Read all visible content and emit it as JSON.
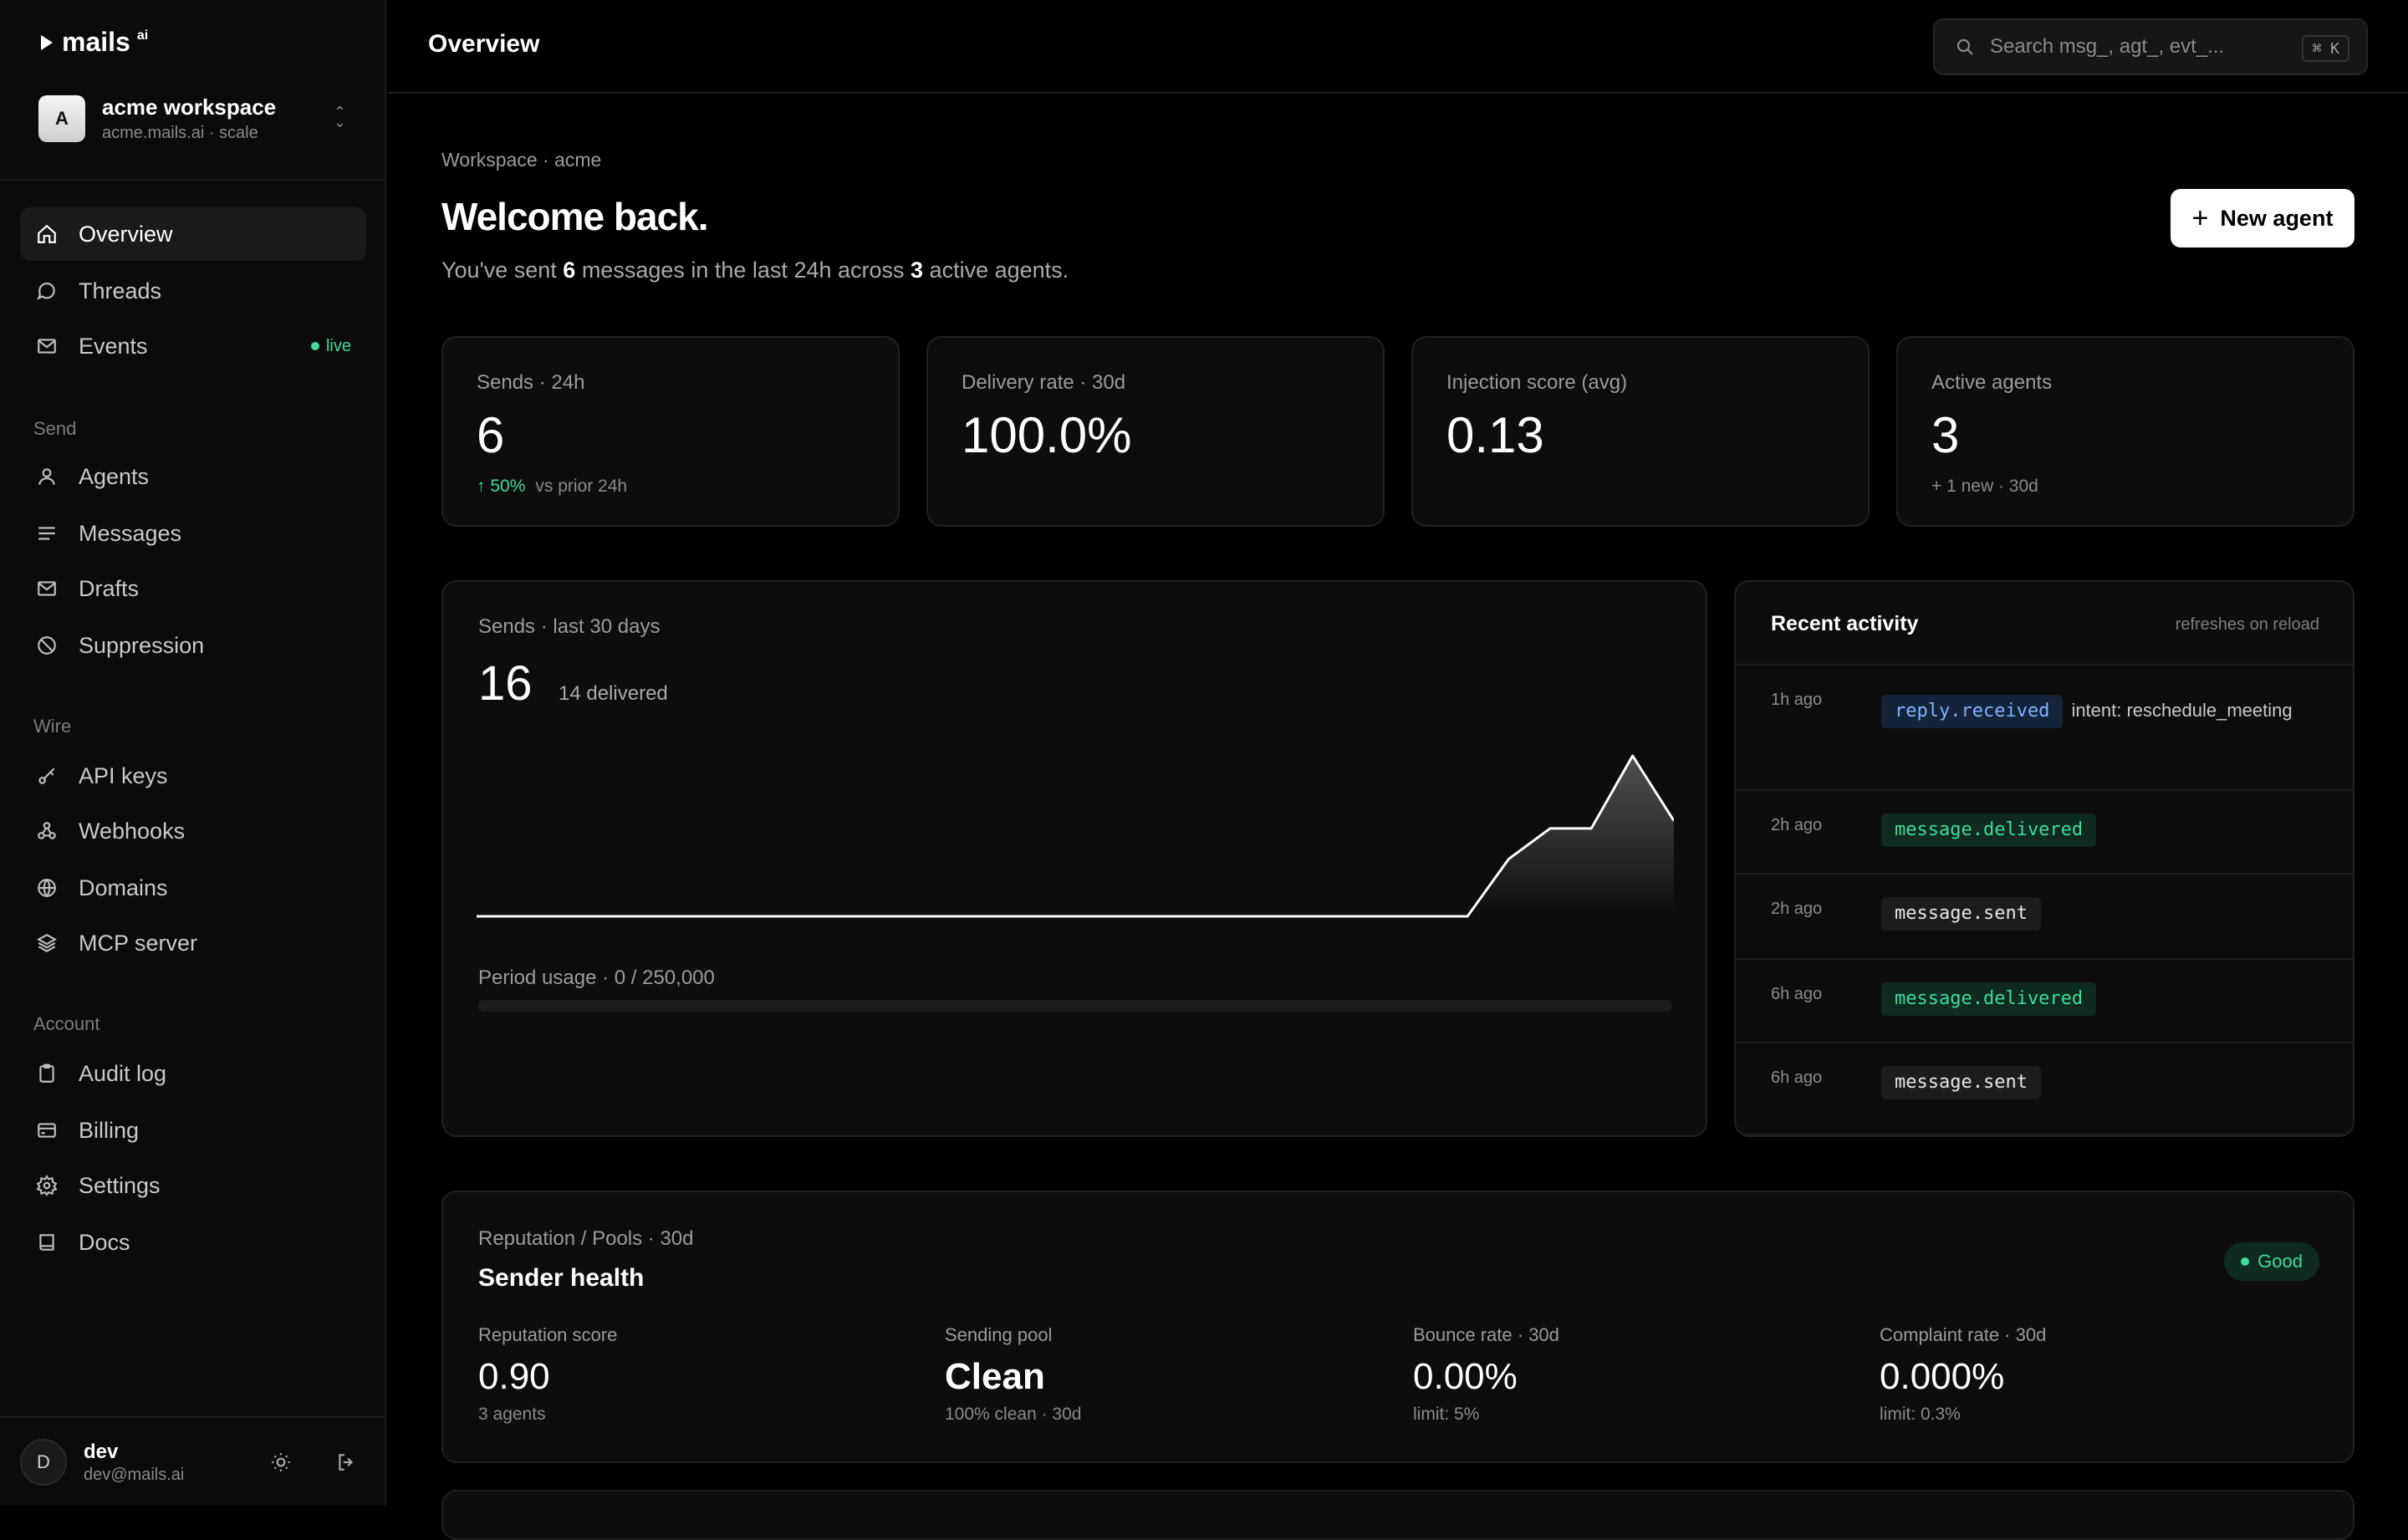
{
  "brand": {
    "logo_text": "mails",
    "logo_sup": "ai"
  },
  "workspace": {
    "avatar_letter": "A",
    "name": "acme workspace",
    "sub": "acme.mails.ai · scale"
  },
  "nav": {
    "overview": "Overview",
    "threads": "Threads",
    "events": "Events",
    "events_badge": "live",
    "section_send": "Send",
    "agents": "Agents",
    "messages": "Messages",
    "drafts": "Drafts",
    "suppression": "Suppression",
    "section_wire": "Wire",
    "api_keys": "API keys",
    "webhooks": "Webhooks",
    "domains": "Domains",
    "mcp_server": "MCP server",
    "section_account": "Account",
    "audit_log": "Audit log",
    "billing": "Billing",
    "settings": "Settings",
    "docs": "Docs"
  },
  "user": {
    "avatar_letter": "D",
    "name": "dev",
    "email": "dev@mails.ai"
  },
  "topbar": {
    "title": "Overview",
    "search_placeholder": "Search msg_, agt_, evt_...",
    "shortcut": "⌘ K"
  },
  "header": {
    "crumb": "Workspace · acme",
    "welcome": "Welcome back.",
    "sub_pre": "You've sent ",
    "sub_count": "6",
    "sub_mid": " messages in the last 24h across ",
    "sub_agents": "3",
    "sub_post": " active agents.",
    "new_agent_label": "New agent"
  },
  "stats": [
    {
      "label": "Sends · 24h",
      "value": "6",
      "delta": "↑ 50%",
      "foot": "vs prior 24h"
    },
    {
      "label": "Delivery rate · 30d",
      "value": "100.0%"
    },
    {
      "label": "Injection score (avg)",
      "value": "0.13"
    },
    {
      "label": "Active agents",
      "value": "3",
      "foot": "+ 1  new · 30d"
    }
  ],
  "sends_card": {
    "label": "Sends · last 30 days",
    "total": "16",
    "delivered": "14 delivered",
    "usage_label": "Period usage · 0 / 250,000",
    "usage_fraction": 0
  },
  "chart_data": {
    "type": "area",
    "values": [
      0,
      0,
      0,
      0,
      0,
      0,
      0,
      0,
      0,
      0,
      0,
      0,
      0,
      0,
      0,
      0,
      0,
      0,
      0,
      0,
      0,
      0,
      0,
      0,
      0,
      1.5,
      2.3,
      2.3,
      4.2,
      2.5
    ],
    "color": "#ffffff"
  },
  "activity": {
    "title": "Recent activity",
    "note": "refreshes on reload",
    "rows": [
      {
        "time": "1h ago",
        "event": "reply.received",
        "tone": "blue",
        "detail": "intent: reschedule_meeting"
      },
      {
        "time": "2h ago",
        "event": "message.delivered",
        "tone": "green",
        "detail": ""
      },
      {
        "time": "2h ago",
        "event": "message.sent",
        "tone": "gray",
        "detail": ""
      },
      {
        "time": "6h ago",
        "event": "message.delivered",
        "tone": "green",
        "detail": ""
      },
      {
        "time": "6h ago",
        "event": "message.sent",
        "tone": "gray",
        "detail": ""
      }
    ]
  },
  "reputation": {
    "crumb": "Reputation / Pools · 30d",
    "title": "Sender health",
    "status": "Good",
    "metrics": [
      {
        "label": "Reputation score",
        "value": "0.90",
        "sub": "3 agents"
      },
      {
        "label": "Sending pool",
        "value": "Clean",
        "sub": "100% clean · 30d"
      },
      {
        "label": "Bounce rate · 30d",
        "value": "0.00%",
        "sub": "limit: 5%"
      },
      {
        "label": "Complaint rate · 30d",
        "value": "0.000%",
        "sub": "limit: 0.3%"
      }
    ]
  }
}
